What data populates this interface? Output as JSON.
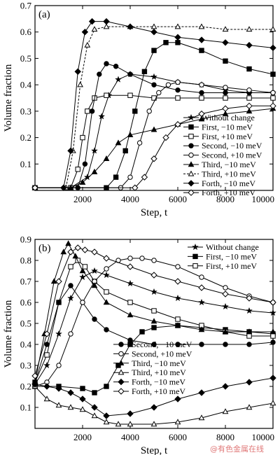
{
  "watermark": "@有色金属在线",
  "chart_data": [
    {
      "type": "line",
      "panel_label": "(a)",
      "xlabel": "Step, t",
      "ylabel": "Volume fraction",
      "xlim": [
        0,
        10000
      ],
      "ylim": [
        0,
        0.7
      ],
      "xticks": [
        2000,
        4000,
        6000,
        8000,
        10000
      ],
      "xtick_labels": [
        "2000",
        "4000",
        "6000",
        "8000",
        "10000"
      ],
      "yticks": [
        0.1,
        0.2,
        0.3,
        0.4,
        0.5,
        0.6,
        0.7
      ],
      "ytick_labels": [
        "0.1",
        "0.2",
        "0.3",
        "0.4",
        "0.5",
        "0.6",
        "0.7"
      ],
      "grid": false,
      "legend_position": "lower-right",
      "series": [
        {
          "name": "Without change",
          "marker": "star",
          "style": "solid",
          "x": [
            0,
            1500,
            2200,
            2500,
            2800,
            3100,
            3500,
            4000,
            5000,
            6000,
            7000,
            8000,
            9000,
            10000
          ],
          "y": [
            0.01,
            0.01,
            0.05,
            0.15,
            0.28,
            0.36,
            0.42,
            0.44,
            0.43,
            0.41,
            0.4,
            0.38,
            0.37,
            0.37
          ]
        },
        {
          "name": "First, −10 meV",
          "marker": "square-filled",
          "style": "solid",
          "x": [
            0,
            3000,
            3400,
            3800,
            4200,
            4600,
            5000,
            5500,
            6000,
            7000,
            8000,
            9000,
            10000
          ],
          "y": [
            0.01,
            0.01,
            0.05,
            0.15,
            0.3,
            0.45,
            0.53,
            0.56,
            0.56,
            0.53,
            0.49,
            0.46,
            0.44
          ]
        },
        {
          "name": "First, +10 meV",
          "marker": "square-open",
          "style": "solid",
          "x": [
            0,
            1500,
            1800,
            2000,
            2200,
            2500,
            3000,
            4000,
            5000,
            6000,
            7000,
            8000,
            9000,
            10000
          ],
          "y": [
            0.01,
            0.01,
            0.08,
            0.2,
            0.3,
            0.35,
            0.36,
            0.36,
            0.35,
            0.35,
            0.35,
            0.35,
            0.35,
            0.35
          ]
        },
        {
          "name": "Second, −10 meV",
          "marker": "circle-filled",
          "style": "solid",
          "x": [
            0,
            1800,
            2100,
            2400,
            2700,
            3000,
            3400,
            4000,
            5000,
            6000,
            7000,
            8000,
            9000,
            10000
          ],
          "y": [
            0.01,
            0.01,
            0.1,
            0.3,
            0.44,
            0.48,
            0.47,
            0.44,
            0.4,
            0.38,
            0.37,
            0.37,
            0.37,
            0.37
          ]
        },
        {
          "name": "Second, +10 meV",
          "marker": "circle-open",
          "style": "solid",
          "x": [
            0,
            3600,
            4000,
            4400,
            4800,
            5200,
            5600,
            6000,
            7000,
            8000,
            9000,
            10000
          ],
          "y": [
            0.01,
            0.01,
            0.05,
            0.18,
            0.3,
            0.37,
            0.4,
            0.41,
            0.4,
            0.39,
            0.38,
            0.37
          ]
        },
        {
          "name": "Third, −10 meV",
          "marker": "triangle-filled",
          "style": "solid",
          "x": [
            0,
            1500,
            2000,
            2500,
            3000,
            3500,
            4000,
            5000,
            6000,
            7000,
            8000,
            9000,
            10000
          ],
          "y": [
            0.01,
            0.01,
            0.03,
            0.07,
            0.12,
            0.18,
            0.21,
            0.23,
            0.25,
            0.27,
            0.29,
            0.3,
            0.31
          ]
        },
        {
          "name": "Third, +10 meV",
          "marker": "triangle-open",
          "style": "dashed",
          "x": [
            0,
            1300,
            1600,
            1900,
            2200,
            2500,
            3000,
            4000,
            5000,
            6000,
            7000,
            8000,
            9000,
            10000
          ],
          "y": [
            0.01,
            0.01,
            0.15,
            0.4,
            0.55,
            0.61,
            0.62,
            0.62,
            0.62,
            0.62,
            0.62,
            0.61,
            0.61,
            0.61
          ]
        },
        {
          "name": "Forth, −10 meV",
          "marker": "diamond-filled",
          "style": "solid",
          "x": [
            0,
            1200,
            1500,
            1800,
            2100,
            2400,
            3000,
            4000,
            5000,
            6000,
            7000,
            8000,
            9000,
            10000
          ],
          "y": [
            0.01,
            0.01,
            0.15,
            0.45,
            0.6,
            0.64,
            0.64,
            0.62,
            0.6,
            0.58,
            0.57,
            0.56,
            0.55,
            0.54
          ]
        },
        {
          "name": "Forth, +10 meV",
          "marker": "diamond-open",
          "style": "solid",
          "x": [
            0,
            4200,
            4600,
            5000,
            5500,
            6000,
            7000,
            8000,
            9000,
            10000
          ],
          "y": [
            0.01,
            0.01,
            0.05,
            0.12,
            0.2,
            0.25,
            0.29,
            0.31,
            0.32,
            0.32
          ]
        }
      ]
    },
    {
      "type": "line",
      "panel_label": "(b)",
      "xlabel": "Step, t",
      "ylabel": "Volume fraction",
      "xlim": [
        0,
        10000
      ],
      "ylim": [
        0,
        0.9
      ],
      "xticks": [
        2000,
        4000,
        6000,
        8000,
        10000
      ],
      "xtick_labels": [
        "2000",
        "4000",
        "6000",
        "8000",
        "10000"
      ],
      "yticks": [
        0.1,
        0.2,
        0.3,
        0.4,
        0.5,
        0.6,
        0.7,
        0.8,
        0.9
      ],
      "ytick_labels": [
        "0.1",
        "0.2",
        "0.3",
        "0.4",
        "0.5",
        "0.6",
        "0.7",
        "0.8",
        "0.9"
      ],
      "grid": false,
      "legend_position": "split: top-right and lower-left",
      "series": [
        {
          "name": "Without change",
          "marker": "star",
          "style": "solid",
          "x": [
            0,
            500,
            1000,
            1500,
            2000,
            2500,
            3000,
            4000,
            5000,
            6000,
            7000,
            8000,
            9000,
            10000
          ],
          "y": [
            0.21,
            0.3,
            0.45,
            0.62,
            0.72,
            0.75,
            0.73,
            0.69,
            0.65,
            0.62,
            0.6,
            0.58,
            0.56,
            0.55
          ]
        },
        {
          "name": "First, −10 meV",
          "marker": "square-filled",
          "style": "solid",
          "x": [
            0,
            1000,
            2000,
            2500,
            3000,
            3500,
            4000,
            4500,
            5000,
            6000,
            7000,
            8000,
            9000,
            10000
          ],
          "y": [
            0.2,
            0.2,
            0.19,
            0.17,
            0.2,
            0.3,
            0.4,
            0.46,
            0.48,
            0.49,
            0.48,
            0.47,
            0.46,
            0.45
          ]
        },
        {
          "name": "First, +10 meV",
          "marker": "square-open",
          "style": "solid",
          "x": [
            0,
            500,
            1000,
            1500,
            1800,
            2100,
            2500,
            3000,
            4000,
            5000,
            6000,
            7000,
            8000,
            9000,
            10000
          ],
          "y": [
            0.22,
            0.35,
            0.6,
            0.77,
            0.8,
            0.77,
            0.7,
            0.65,
            0.6,
            0.56,
            0.52,
            0.49,
            0.46,
            0.44,
            0.44
          ]
        },
        {
          "name": "Second, −10 meV",
          "marker": "circle-filled",
          "style": "solid",
          "x": [
            0,
            500,
            1000,
            1500,
            2000,
            2500,
            3000,
            4000,
            5000,
            6000,
            7000,
            8000,
            9000,
            10000
          ],
          "y": [
            0.22,
            0.4,
            0.6,
            0.68,
            0.6,
            0.52,
            0.47,
            0.42,
            0.4,
            0.4,
            0.4,
            0.4,
            0.4,
            0.41
          ]
        },
        {
          "name": "Second, +10 meV",
          "marker": "circle-open",
          "style": "solid",
          "x": [
            0,
            500,
            1000,
            1500,
            2000,
            2500,
            3000,
            3500,
            4000,
            4500,
            5000,
            6000,
            7000,
            8000,
            9000,
            10000
          ],
          "y": [
            0.2,
            0.22,
            0.3,
            0.45,
            0.6,
            0.7,
            0.76,
            0.8,
            0.81,
            0.81,
            0.8,
            0.77,
            0.72,
            0.67,
            0.63,
            0.6
          ]
        },
        {
          "name": "Third, −10 meV",
          "marker": "triangle-filled",
          "style": "solid",
          "x": [
            0,
            400,
            800,
            1200,
            1400,
            1700,
            2000,
            2500,
            3000,
            4000,
            5000,
            6000,
            7000,
            8000,
            9000,
            10000
          ],
          "y": [
            0.22,
            0.45,
            0.7,
            0.84,
            0.88,
            0.82,
            0.75,
            0.68,
            0.6,
            0.54,
            0.51,
            0.49,
            0.47,
            0.46,
            0.46,
            0.46
          ]
        },
        {
          "name": "Third, +10 meV",
          "marker": "triangle-open",
          "style": "solid",
          "x": [
            0,
            500,
            1000,
            1500,
            2000,
            2500,
            3000,
            3500,
            4000,
            5000,
            6000,
            7000,
            8000,
            9000,
            10000
          ],
          "y": [
            0.2,
            0.14,
            0.11,
            0.1,
            0.09,
            0.06,
            0.03,
            0.02,
            0.02,
            0.02,
            0.03,
            0.05,
            0.08,
            0.1,
            0.12
          ]
        },
        {
          "name": "Forth, −10 meV",
          "marker": "diamond-filled",
          "style": "solid",
          "x": [
            0,
            500,
            1000,
            1500,
            2000,
            2500,
            3000,
            4000,
            5000,
            6000,
            7000,
            8000,
            9000,
            10000
          ],
          "y": [
            0.21,
            0.2,
            0.19,
            0.17,
            0.14,
            0.1,
            0.06,
            0.07,
            0.1,
            0.14,
            0.17,
            0.2,
            0.22,
            0.24
          ]
        },
        {
          "name": "Forth, +10 meV",
          "marker": "diamond-open",
          "style": "solid",
          "x": [
            0,
            500,
            1000,
            1500,
            1800,
            2100,
            2500,
            3000,
            4000,
            5000,
            6000,
            7000,
            8000,
            9000,
            10000
          ],
          "y": [
            0.25,
            0.45,
            0.7,
            0.84,
            0.86,
            0.85,
            0.84,
            0.81,
            0.77,
            0.73,
            0.7,
            0.67,
            0.64,
            0.62,
            0.6
          ]
        }
      ]
    }
  ]
}
